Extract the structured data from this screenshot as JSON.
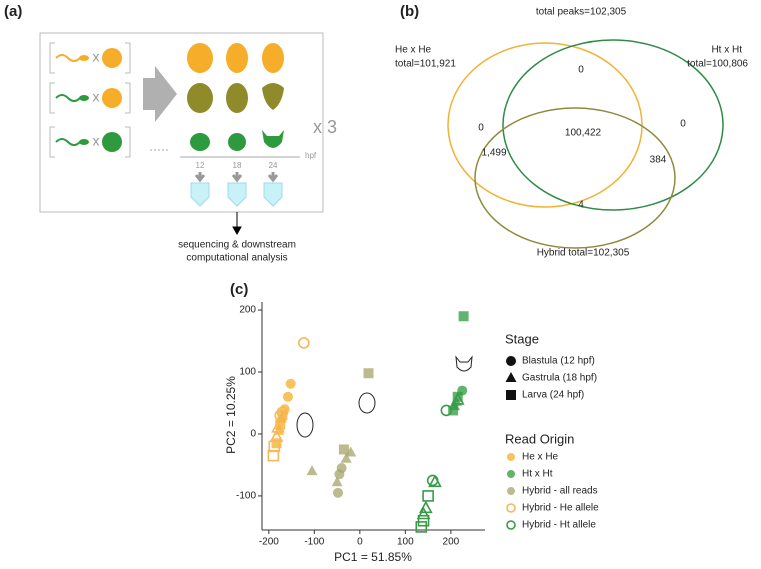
{
  "panel_a": {
    "label": "(a)",
    "cross": [
      "x",
      "x",
      "x"
    ],
    "replicates": "x 3",
    "hpf_unit": "hpf",
    "hpf_ticks": [
      "12",
      "18",
      "24"
    ],
    "caption": [
      "sequencing & downstream",
      "computational analysis"
    ]
  },
  "panel_b": {
    "label": "(b)",
    "total": "total peaks=102,305",
    "sets": [
      {
        "name": "He x He",
        "total": "total=101,921",
        "color": "#f2b233"
      },
      {
        "name": "Ht x Ht",
        "total": "total=100,806",
        "color": "#2e8b45"
      },
      {
        "name": "Hybrid total=102,305",
        "color": "#8f8b3c"
      }
    ],
    "regions": [
      "0",
      "0",
      "0",
      "100,422",
      "1,499",
      "384",
      "4"
    ]
  },
  "chart_data": {
    "type": "scatter",
    "label": "(c)",
    "x_label": "PC1 = 51.85%",
    "y_label": "PC2 = 10.25%",
    "xlim": [
      -215,
      275
    ],
    "ylim": [
      -155,
      213
    ],
    "xticks": [
      -200,
      -100,
      0,
      100,
      200
    ],
    "yticks": [
      -100,
      0,
      100,
      200
    ],
    "stage_legend": {
      "title": "Stage",
      "items": [
        {
          "label": "Blastula (12 hpf)",
          "shape": "circle"
        },
        {
          "label": "Gastrula (18 hpf)",
          "shape": "triangle"
        },
        {
          "label": "Larva (24 hpf)",
          "shape": "square"
        }
      ]
    },
    "legend_title": "Read Origin",
    "series": [
      {
        "name": "He x He",
        "color": "#f5ad2a",
        "filled": true,
        "x": [
          -152,
          -158,
          -165,
          -172,
          -178,
          -183,
          -170,
          -175
        ],
        "values": [
          81,
          60,
          40,
          25,
          5,
          -15,
          30,
          15
        ],
        "shapes": [
          "circle",
          "circle",
          "circle",
          "triangle",
          "triangle",
          "square",
          "square",
          "square"
        ]
      },
      {
        "name": "Ht x Ht",
        "color": "#2d9a3e",
        "filled": true,
        "x": [
          225,
          215,
          212,
          208,
          205,
          228
        ],
        "values": [
          70,
          60,
          52,
          45,
          38,
          190
        ],
        "shapes": [
          "circle",
          "square",
          "triangle",
          "triangle",
          "square",
          "square"
        ]
      },
      {
        "name": "Hybrid - all reads",
        "color": "#a6a46a",
        "filled": true,
        "x": [
          19,
          -35,
          -30,
          -40,
          -45,
          -50,
          -48,
          -105,
          -20
        ],
        "values": [
          98,
          -25,
          -40,
          -55,
          -65,
          -78,
          -95,
          -60,
          -30
        ],
        "shapes": [
          "square",
          "square",
          "triangle",
          "circle",
          "circle",
          "triangle",
          "circle",
          "triangle",
          "triangle"
        ]
      },
      {
        "name": "Hybrid - He allele",
        "color": "#f5b85a",
        "filled": false,
        "x": [
          -123,
          -190,
          -188,
          -183,
          -180,
          -175,
          -170
        ],
        "values": [
          147,
          -35,
          -20,
          -5,
          10,
          30,
          35
        ],
        "shapes": [
          "circle",
          "square",
          "square",
          "triangle",
          "triangle",
          "circle",
          "circle"
        ]
      },
      {
        "name": "Hybrid - Ht allele",
        "color": "#3a9a48",
        "filled": false,
        "x": [
          190,
          215,
          160,
          165,
          150,
          145,
          140,
          135,
          140
        ],
        "values": [
          38,
          55,
          -75,
          -78,
          -100,
          -120,
          -140,
          -150,
          -130
        ],
        "shapes": [
          "circle",
          "triangle",
          "circle",
          "triangle",
          "square",
          "triangle",
          "square",
          "square",
          "triangle"
        ]
      }
    ]
  }
}
